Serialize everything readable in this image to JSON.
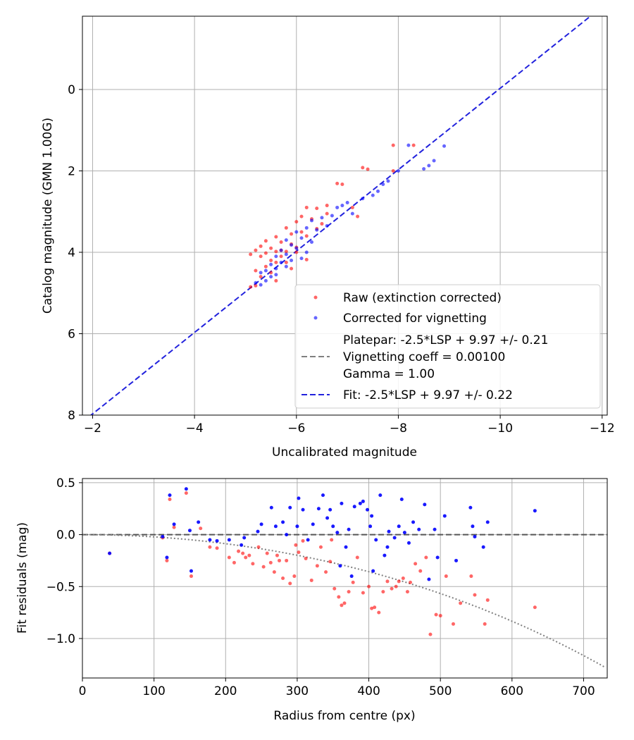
{
  "chart_data": [
    {
      "type": "scatter",
      "title": "",
      "xlabel": "Uncalibrated magnitude",
      "ylabel": "Catalog magnitude (GMN 1.00G)",
      "xlim": [
        -1.8,
        -12.1
      ],
      "ylim": [
        8,
        -1.8
      ],
      "x_ticks": [
        -2,
        -4,
        -6,
        -8,
        -10,
        -12
      ],
      "x_tick_labels": [
        "−2",
        "−4",
        "−6",
        "−8",
        "−10",
        "−12"
      ],
      "y_ticks": [
        0,
        2,
        4,
        6,
        8
      ],
      "y_tick_labels": [
        "0",
        "2",
        "4",
        "6",
        "8"
      ],
      "grid": true,
      "legend_position": "lower-right",
      "legend": [
        {
          "label": "Raw (extinction corrected)",
          "kind": "marker",
          "color": "#ff0000"
        },
        {
          "label": "Corrected for vignetting",
          "kind": "marker",
          "color": "#0000ff"
        },
        {
          "label": "Platepar: -2.5*LSP + 9.97 +/- 0.21",
          "label2": "Vignetting coeff = 0.00100",
          "label3": "Gamma = 1.00",
          "kind": "dashed",
          "color": "#808080"
        },
        {
          "label": "Fit: -2.5*LSP + 9.97 +/- 0.22",
          "kind": "dashed",
          "color": "#2222dd"
        }
      ],
      "fit_line": {
        "slope": 1.0,
        "intercept": 9.97
      },
      "series": [
        {
          "name": "Raw (extinction corrected)",
          "color": "#ff0000",
          "points": [
            [
              -7.9,
              1.37
            ],
            [
              -8.3,
              1.37
            ],
            [
              -7.3,
              1.92
            ],
            [
              -7.4,
              1.96
            ],
            [
              -7.9,
              2.0
            ],
            [
              -6.8,
              2.31
            ],
            [
              -6.9,
              2.33
            ],
            [
              -6.6,
              2.85
            ],
            [
              -6.2,
              2.9
            ],
            [
              -6.4,
              2.92
            ],
            [
              -7.1,
              2.9
            ],
            [
              -6.6,
              3.05
            ],
            [
              -6.1,
              3.12
            ],
            [
              -7.2,
              3.12
            ],
            [
              -6.3,
              3.18
            ],
            [
              -6.0,
              3.25
            ],
            [
              -6.5,
              3.3
            ],
            [
              -6.4,
              3.42
            ],
            [
              -5.8,
              3.4
            ],
            [
              -6.1,
              3.5
            ],
            [
              -5.9,
              3.55
            ],
            [
              -5.6,
              3.62
            ],
            [
              -6.2,
              3.6
            ],
            [
              -5.4,
              3.72
            ],
            [
              -5.7,
              3.75
            ],
            [
              -5.9,
              3.8
            ],
            [
              -5.3,
              3.85
            ],
            [
              -6.0,
              3.88
            ],
            [
              -5.5,
              3.9
            ],
            [
              -5.2,
              3.95
            ],
            [
              -5.6,
              3.98
            ],
            [
              -5.8,
              3.98
            ],
            [
              -5.1,
              4.05
            ],
            [
              -5.4,
              4.02
            ],
            [
              -5.3,
              4.1
            ],
            [
              -5.7,
              4.1
            ],
            [
              -5.5,
              4.2
            ],
            [
              -5.6,
              4.25
            ],
            [
              -5.4,
              4.35
            ],
            [
              -5.2,
              4.45
            ],
            [
              -5.5,
              4.5
            ],
            [
              -5.3,
              4.6
            ],
            [
              -5.6,
              4.7
            ],
            [
              -5.1,
              4.85
            ],
            [
              -5.2,
              4.82
            ],
            [
              -5.9,
              4.4
            ],
            [
              -5.8,
              4.25
            ],
            [
              -6.2,
              4.18
            ],
            [
              -6.0,
              4.0
            ],
            [
              -5.7,
              3.95
            ]
          ]
        },
        {
          "name": "Corrected for vignetting",
          "color": "#0000ff",
          "points": [
            [
              -8.2,
              1.37
            ],
            [
              -8.9,
              1.39
            ],
            [
              -8.7,
              1.75
            ],
            [
              -8.6,
              1.87
            ],
            [
              -8.5,
              1.95
            ],
            [
              -8.0,
              2.0
            ],
            [
              -7.8,
              2.25
            ],
            [
              -7.7,
              2.33
            ],
            [
              -7.6,
              2.5
            ],
            [
              -7.5,
              2.6
            ],
            [
              -7.3,
              2.68
            ],
            [
              -7.0,
              2.78
            ],
            [
              -6.9,
              2.85
            ],
            [
              -6.8,
              2.9
            ],
            [
              -7.1,
              3.05
            ],
            [
              -6.7,
              3.1
            ],
            [
              -6.5,
              3.15
            ],
            [
              -6.3,
              3.22
            ],
            [
              -6.6,
              3.35
            ],
            [
              -6.2,
              3.4
            ],
            [
              -6.4,
              3.45
            ],
            [
              -6.0,
              3.5
            ],
            [
              -6.1,
              3.65
            ],
            [
              -5.8,
              3.7
            ],
            [
              -6.3,
              3.75
            ],
            [
              -5.9,
              3.82
            ],
            [
              -6.0,
              3.9
            ],
            [
              -5.7,
              3.95
            ],
            [
              -6.2,
              4.0
            ],
            [
              -5.8,
              4.05
            ],
            [
              -5.6,
              4.1
            ],
            [
              -6.1,
              4.15
            ],
            [
              -5.9,
              4.2
            ],
            [
              -5.7,
              4.25
            ],
            [
              -5.5,
              4.3
            ],
            [
              -5.8,
              4.35
            ],
            [
              -5.6,
              4.4
            ],
            [
              -5.4,
              4.45
            ],
            [
              -5.3,
              4.5
            ],
            [
              -5.6,
              4.55
            ],
            [
              -5.5,
              4.6
            ],
            [
              -5.4,
              4.7
            ],
            [
              -5.3,
              4.8
            ],
            [
              -5.2,
              4.75
            ]
          ]
        }
      ]
    },
    {
      "type": "scatter",
      "title": "",
      "xlabel": "Radius from centre (px)",
      "ylabel": "Fit residuals (mag)",
      "xlim": [
        0,
        733
      ],
      "ylim": [
        -1.38,
        0.54
      ],
      "x_ticks": [
        0,
        100,
        200,
        300,
        400,
        500,
        600,
        700
      ],
      "x_tick_labels": [
        "0",
        "100",
        "200",
        "300",
        "400",
        "500",
        "600",
        "700"
      ],
      "y_ticks": [
        0.5,
        0.0,
        -0.5,
        -1.0
      ],
      "y_tick_labels": [
        "0.5",
        "0.0",
        "−0.5",
        "−1.0"
      ],
      "grid": true,
      "zero_line": {
        "y": 0,
        "style": "dashed",
        "color": "#555555"
      },
      "vignetting_curve": {
        "coeff": 0.001,
        "style": "dotted",
        "color": "#808080"
      },
      "series": [
        {
          "name": "Raw (extinction corrected)",
          "color": "#ff0000",
          "points": [
            [
              38,
              -0.18
            ],
            [
              112,
              -0.03
            ],
            [
              118,
              -0.25
            ],
            [
              122,
              0.34
            ],
            [
              128,
              0.07
            ],
            [
              145,
              0.4
            ],
            [
              152,
              -0.4
            ],
            [
              165,
              0.06
            ],
            [
              178,
              -0.12
            ],
            [
              188,
              -0.13
            ],
            [
              205,
              -0.22
            ],
            [
              212,
              -0.27
            ],
            [
              218,
              -0.16
            ],
            [
              224,
              -0.18
            ],
            [
              228,
              -0.22
            ],
            [
              233,
              -0.2
            ],
            [
              238,
              -0.28
            ],
            [
              246,
              -0.12
            ],
            [
              253,
              -0.31
            ],
            [
              258,
              -0.18
            ],
            [
              263,
              -0.27
            ],
            [
              268,
              -0.36
            ],
            [
              275,
              -0.25
            ],
            [
              280,
              -0.42
            ],
            [
              285,
              -0.25
            ],
            [
              290,
              -0.47
            ],
            [
              296,
              -0.4
            ],
            [
              302,
              -0.17
            ],
            [
              308,
              -0.06
            ],
            [
              312,
              -0.23
            ],
            [
              320,
              -0.44
            ],
            [
              328,
              -0.3
            ],
            [
              333,
              -0.12
            ],
            [
              340,
              -0.36
            ],
            [
              346,
              -0.26
            ],
            [
              352,
              -0.52
            ],
            [
              358,
              -0.6
            ],
            [
              362,
              -0.68
            ],
            [
              366,
              -0.66
            ],
            [
              372,
              -0.55
            ],
            [
              378,
              -0.46
            ],
            [
              384,
              -0.22
            ],
            [
              392,
              -0.56
            ],
            [
              400,
              -0.5
            ],
            [
              404,
              -0.71
            ],
            [
              408,
              -0.7
            ],
            [
              414,
              -0.75
            ],
            [
              420,
              -0.55
            ],
            [
              426,
              -0.45
            ],
            [
              432,
              -0.52
            ],
            [
              438,
              -0.5
            ],
            [
              442,
              -0.45
            ],
            [
              448,
              -0.42
            ],
            [
              454,
              -0.55
            ],
            [
              458,
              -0.46
            ],
            [
              465,
              -0.28
            ],
            [
              472,
              -0.35
            ],
            [
              480,
              -0.22
            ],
            [
              486,
              -0.96
            ],
            [
              494,
              -0.77
            ],
            [
              500,
              -0.78
            ],
            [
              508,
              -0.4
            ],
            [
              518,
              -0.86
            ],
            [
              528,
              -0.66
            ],
            [
              543,
              -0.4
            ],
            [
              548,
              -0.58
            ],
            [
              562,
              -0.86
            ],
            [
              566,
              -0.63
            ],
            [
              632,
              -0.7
            ],
            [
              272,
              -0.2
            ],
            [
              298,
              -0.1
            ],
            [
              348,
              -0.05
            ]
          ]
        },
        {
          "name": "Corrected for vignetting",
          "color": "#0000ff",
          "points": [
            [
              38,
              -0.18
            ],
            [
              112,
              -0.02
            ],
            [
              118,
              -0.22
            ],
            [
              122,
              0.38
            ],
            [
              128,
              0.1
            ],
            [
              145,
              0.44
            ],
            [
              150,
              0.04
            ],
            [
              152,
              -0.35
            ],
            [
              162,
              0.12
            ],
            [
              178,
              -0.05
            ],
            [
              188,
              -0.06
            ],
            [
              205,
              -0.05
            ],
            [
              222,
              -0.1
            ],
            [
              226,
              -0.03
            ],
            [
              245,
              0.03
            ],
            [
              250,
              0.1
            ],
            [
              264,
              0.26
            ],
            [
              270,
              0.08
            ],
            [
              280,
              0.12
            ],
            [
              285,
              0.0
            ],
            [
              290,
              0.26
            ],
            [
              300,
              0.08
            ],
            [
              302,
              0.35
            ],
            [
              308,
              0.24
            ],
            [
              315,
              -0.05
            ],
            [
              322,
              0.1
            ],
            [
              330,
              0.25
            ],
            [
              336,
              0.38
            ],
            [
              342,
              0.16
            ],
            [
              346,
              0.24
            ],
            [
              350,
              0.08
            ],
            [
              356,
              0.02
            ],
            [
              362,
              0.3
            ],
            [
              368,
              -0.12
            ],
            [
              372,
              0.05
            ],
            [
              380,
              0.27
            ],
            [
              388,
              0.3
            ],
            [
              392,
              0.32
            ],
            [
              398,
              0.24
            ],
            [
              402,
              0.08
            ],
            [
              406,
              -0.35
            ],
            [
              410,
              -0.05
            ],
            [
              416,
              0.38
            ],
            [
              422,
              -0.2
            ],
            [
              428,
              0.03
            ],
            [
              436,
              -0.03
            ],
            [
              442,
              0.08
            ],
            [
              446,
              0.34
            ],
            [
              450,
              0.02
            ],
            [
              456,
              -0.08
            ],
            [
              462,
              0.12
            ],
            [
              470,
              0.05
            ],
            [
              478,
              0.29
            ],
            [
              484,
              -0.43
            ],
            [
              492,
              0.05
            ],
            [
              496,
              -0.22
            ],
            [
              506,
              0.18
            ],
            [
              522,
              -0.25
            ],
            [
              542,
              0.26
            ],
            [
              545,
              0.08
            ],
            [
              548,
              -0.02
            ],
            [
              560,
              -0.12
            ],
            [
              566,
              0.12
            ],
            [
              632,
              0.23
            ],
            [
              404,
              0.18
            ],
            [
              426,
              -0.12
            ],
            [
              360,
              -0.3
            ],
            [
              376,
              -0.4
            ]
          ]
        }
      ]
    }
  ]
}
